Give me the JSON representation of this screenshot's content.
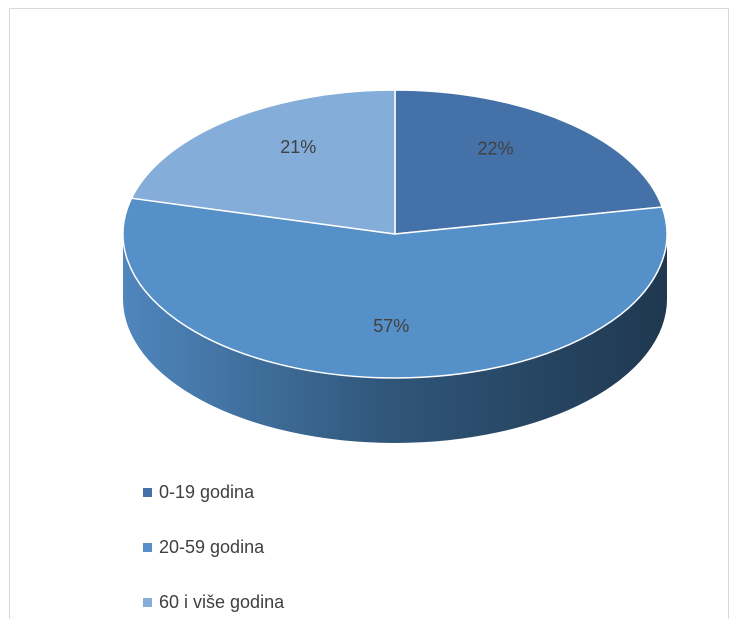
{
  "chart_data": {
    "type": "pie",
    "title": "",
    "categories": [
      "0-19 godina",
      "20-59 godina",
      "60 i više godina"
    ],
    "values": [
      22,
      57,
      21
    ],
    "labels": [
      "22%",
      "57%",
      "21%"
    ],
    "colors": [
      "#4472a8",
      "#5590c8",
      "#84aed9"
    ],
    "side_colors": [
      "#35597f",
      "#2a4a6b",
      "#35597f"
    ],
    "legend_position": "bottom-left",
    "style": "3d"
  }
}
